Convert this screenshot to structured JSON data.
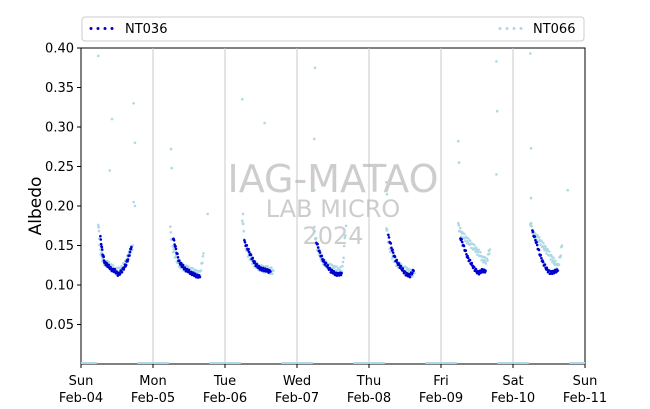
{
  "chart_data": {
    "type": "scatter",
    "ylabel": "Albedo",
    "ylim": [
      0,
      0.4
    ],
    "yticks": [
      "0.05",
      "0.10",
      "0.15",
      "0.20",
      "0.25",
      "0.30",
      "0.35",
      "0.40"
    ],
    "xlim_days": [
      0,
      7
    ],
    "xticks": [
      {
        "day": "Sun",
        "date": "Feb-04"
      },
      {
        "day": "Mon",
        "date": "Feb-05"
      },
      {
        "day": "Tue",
        "date": "Feb-06"
      },
      {
        "day": "Wed",
        "date": "Feb-07"
      },
      {
        "day": "Thu",
        "date": "Feb-08"
      },
      {
        "day": "Fri",
        "date": "Feb-09"
      },
      {
        "day": "Sat",
        "date": "Feb-10"
      },
      {
        "day": "Sun",
        "date": "Feb-11"
      }
    ],
    "grid": "vertical",
    "legend_position": "top",
    "watermark": [
      "IAG-MATAO",
      "LAB MICRO",
      "2024"
    ],
    "series": [
      {
        "name": "NT036",
        "color": "#0000cd",
        "daily_curves": [
          [
            [
              0.27,
              0.16
            ],
            [
              0.3,
              0.14
            ],
            [
              0.33,
              0.128
            ],
            [
              0.37,
              0.125
            ],
            [
              0.42,
              0.12
            ],
            [
              0.47,
              0.118
            ],
            [
              0.52,
              0.113
            ],
            [
              0.57,
              0.118
            ],
            [
              0.62,
              0.125
            ],
            [
              0.66,
              0.135
            ],
            [
              0.7,
              0.148
            ]
          ],
          [
            [
              1.28,
              0.16
            ],
            [
              1.32,
              0.145
            ],
            [
              1.36,
              0.13
            ],
            [
              1.4,
              0.125
            ],
            [
              1.45,
              0.12
            ],
            [
              1.5,
              0.117
            ],
            [
              1.55,
              0.114
            ],
            [
              1.6,
              0.112
            ],
            [
              1.65,
              0.11
            ]
          ],
          [
            [
              2.27,
              0.155
            ],
            [
              2.32,
              0.145
            ],
            [
              2.37,
              0.135
            ],
            [
              2.42,
              0.127
            ],
            [
              2.47,
              0.122
            ],
            [
              2.52,
              0.12
            ],
            [
              2.58,
              0.118
            ],
            [
              2.63,
              0.117
            ]
          ],
          [
            [
              3.27,
              0.155
            ],
            [
              3.32,
              0.14
            ],
            [
              3.37,
              0.13
            ],
            [
              3.42,
              0.124
            ],
            [
              3.47,
              0.118
            ],
            [
              3.52,
              0.115
            ],
            [
              3.57,
              0.113
            ],
            [
              3.62,
              0.115
            ]
          ],
          [
            [
              4.27,
              0.162
            ],
            [
              4.32,
              0.145
            ],
            [
              4.37,
              0.132
            ],
            [
              4.42,
              0.125
            ],
            [
              4.47,
              0.119
            ],
            [
              4.52,
              0.113
            ],
            [
              4.57,
              0.112
            ],
            [
              4.62,
              0.118
            ]
          ],
          [
            [
              5.27,
              0.16
            ],
            [
              5.32,
              0.148
            ],
            [
              5.37,
              0.135
            ],
            [
              5.42,
              0.127
            ],
            [
              5.47,
              0.12
            ],
            [
              5.52,
              0.115
            ],
            [
              5.57,
              0.118
            ],
            [
              5.62,
              0.118
            ]
          ],
          [
            [
              6.27,
              0.168
            ],
            [
              6.32,
              0.155
            ],
            [
              6.37,
              0.14
            ],
            [
              6.42,
              0.128
            ],
            [
              6.47,
              0.12
            ],
            [
              6.52,
              0.115
            ],
            [
              6.57,
              0.117
            ],
            [
              6.62,
              0.118
            ]
          ]
        ]
      },
      {
        "name": "NT066",
        "color": "#add8e6",
        "daily_curves": [
          [
            [
              0.24,
              0.18
            ],
            [
              0.26,
              0.15
            ],
            [
              0.29,
              0.135
            ],
            [
              0.33,
              0.128
            ],
            [
              0.38,
              0.126
            ],
            [
              0.43,
              0.122
            ],
            [
              0.48,
              0.118
            ],
            [
              0.53,
              0.118
            ],
            [
              0.58,
              0.122
            ],
            [
              0.63,
              0.13
            ],
            [
              0.67,
              0.14
            ],
            [
              0.72,
              0.15
            ]
          ],
          [
            [
              1.24,
              0.17
            ],
            [
              1.28,
              0.145
            ],
            [
              1.33,
              0.132
            ],
            [
              1.38,
              0.125
            ],
            [
              1.43,
              0.122
            ],
            [
              1.48,
              0.12
            ],
            [
              1.53,
              0.118
            ],
            [
              1.58,
              0.116
            ],
            [
              1.62,
              0.114
            ],
            [
              1.66,
              0.115
            ],
            [
              1.7,
              0.14
            ]
          ],
          [
            [
              2.24,
              0.185
            ],
            [
              2.28,
              0.15
            ],
            [
              2.33,
              0.138
            ],
            [
              2.38,
              0.13
            ],
            [
              2.43,
              0.125
            ],
            [
              2.48,
              0.122
            ],
            [
              2.53,
              0.12
            ],
            [
              2.58,
              0.12
            ],
            [
              2.63,
              0.118
            ],
            [
              2.67,
              0.118
            ]
          ],
          [
            [
              3.24,
              0.17
            ],
            [
              3.28,
              0.148
            ],
            [
              3.33,
              0.135
            ],
            [
              3.38,
              0.128
            ],
            [
              3.43,
              0.124
            ],
            [
              3.48,
              0.122
            ],
            [
              3.53,
              0.12
            ],
            [
              3.58,
              0.118
            ],
            [
              3.63,
              0.12
            ],
            [
              3.68,
              0.175
            ]
          ],
          [
            [
              4.24,
              0.175
            ],
            [
              4.28,
              0.15
            ],
            [
              4.33,
              0.135
            ],
            [
              4.38,
              0.128
            ],
            [
              4.43,
              0.124
            ],
            [
              4.48,
              0.12
            ],
            [
              4.53,
              0.118
            ],
            [
              4.58,
              0.115
            ],
            [
              4.63,
              0.115
            ]
          ],
          [
            [
              5.24,
              0.175
            ],
            [
              5.28,
              0.165
            ],
            [
              5.33,
              0.16
            ],
            [
              5.38,
              0.155
            ],
            [
              5.43,
              0.15
            ],
            [
              5.48,
              0.145
            ],
            [
              5.53,
              0.14
            ],
            [
              5.58,
              0.133
            ],
            [
              5.63,
              0.13
            ],
            [
              5.68,
              0.145
            ]
          ],
          [
            [
              6.24,
              0.18
            ],
            [
              6.28,
              0.165
            ],
            [
              6.33,
              0.16
            ],
            [
              6.38,
              0.155
            ],
            [
              6.43,
              0.148
            ],
            [
              6.48,
              0.142
            ],
            [
              6.53,
              0.135
            ],
            [
              6.58,
              0.128
            ],
            [
              6.63,
              0.122
            ],
            [
              6.68,
              0.15
            ]
          ]
        ],
        "outliers": [
          [
            0.24,
            0.39
          ],
          [
            0.43,
            0.31
          ],
          [
            0.4,
            0.245
          ],
          [
            0.73,
            0.33
          ],
          [
            0.75,
            0.28
          ],
          [
            0.73,
            0.205
          ],
          [
            0.75,
            0.2
          ],
          [
            1.25,
            0.272
          ],
          [
            1.26,
            0.248
          ],
          [
            1.76,
            0.19
          ],
          [
            2.24,
            0.335
          ],
          [
            2.55,
            0.305
          ],
          [
            2.25,
            0.19
          ],
          [
            3.25,
            0.375
          ],
          [
            3.24,
            0.285
          ],
          [
            3.24,
            0.22
          ],
          [
            4.24,
            0.23
          ],
          [
            4.25,
            0.215
          ],
          [
            5.24,
            0.282
          ],
          [
            5.25,
            0.255
          ],
          [
            6.24,
            0.393
          ],
          [
            6.25,
            0.273
          ],
          [
            6.25,
            0.21
          ],
          [
            5.77,
            0.383
          ],
          [
            5.78,
            0.32
          ],
          [
            5.77,
            0.24
          ],
          [
            6.76,
            0.22
          ]
        ]
      }
    ]
  }
}
